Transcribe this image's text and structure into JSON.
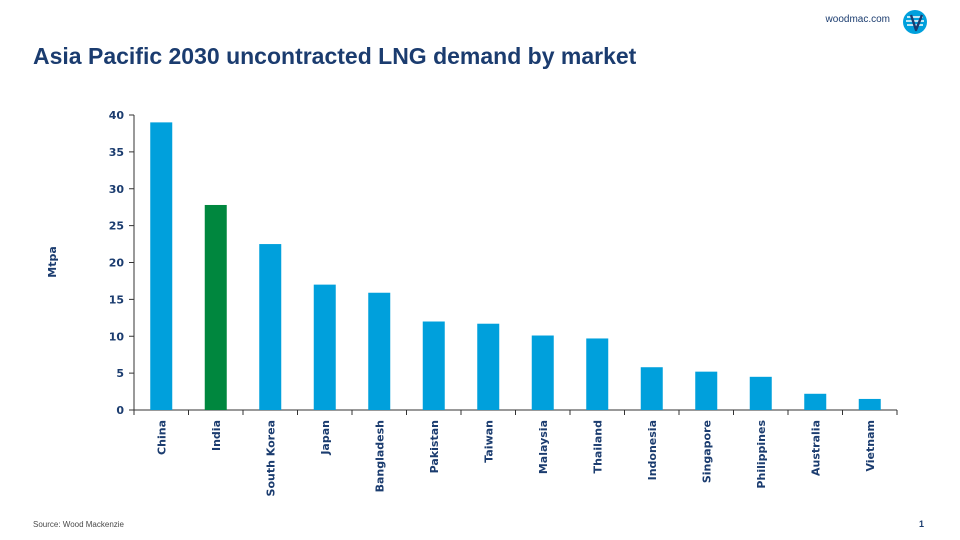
{
  "header": {
    "brand": "woodmac.com",
    "title": "Asia Pacific 2030 uncontracted LNG demand by market"
  },
  "footer": {
    "source": "Source: Wood Mackenzie",
    "page_number": "1"
  },
  "colors": {
    "title": "#1b3c6f",
    "bar_default": "#00a0dc",
    "bar_highlight": "#00873e",
    "logo": "#00a0dc"
  },
  "chart_data": {
    "type": "bar",
    "title": "Asia Pacific 2030 uncontracted LNG demand by market",
    "xlabel": "",
    "ylabel": "Mtpa",
    "ylim": [
      0,
      40
    ],
    "yticks": [
      0,
      5,
      10,
      15,
      20,
      25,
      30,
      35,
      40
    ],
    "grid": false,
    "categories": [
      "China",
      "India",
      "South Korea",
      "Japan",
      "Bangladesh",
      "Pakistan",
      "Taiwan",
      "Malaysia",
      "Thailand",
      "Indonesia",
      "Singapore",
      "Philippines",
      "Australia",
      "Vietnam"
    ],
    "values": [
      39.0,
      27.8,
      22.5,
      17.0,
      15.9,
      12.0,
      11.7,
      10.1,
      9.7,
      5.8,
      5.2,
      4.5,
      2.2,
      1.5
    ],
    "highlight_category": "India"
  }
}
